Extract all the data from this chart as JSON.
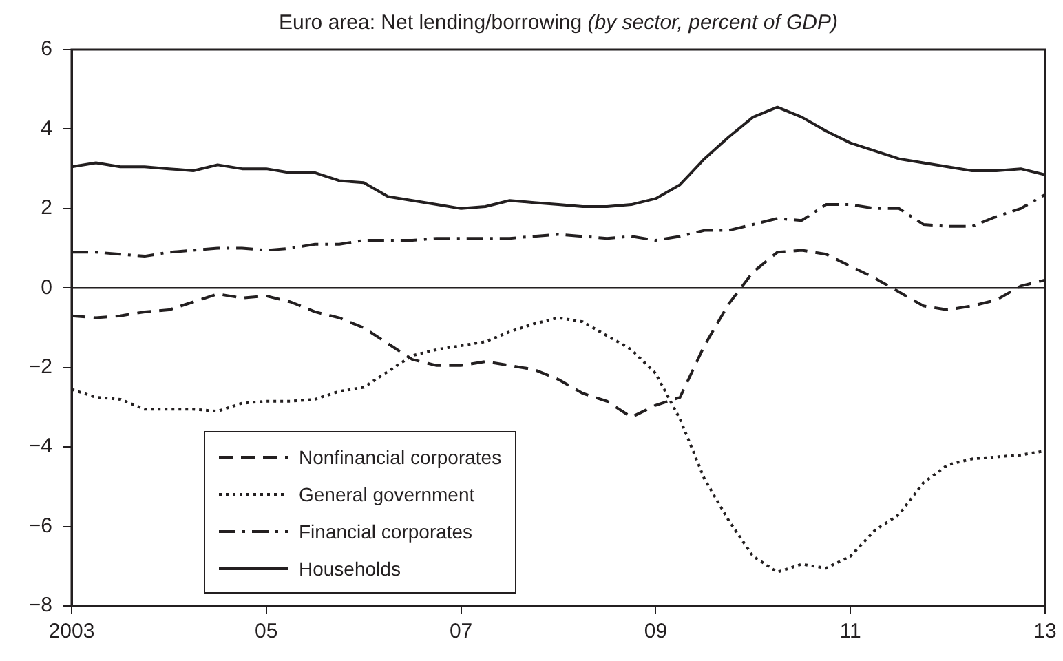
{
  "chart_data": {
    "type": "line",
    "title": "Euro area: Net lending/borrowing",
    "subtitle": "(by sector, percent of GDP)",
    "x": [
      2003,
      2003.25,
      2003.5,
      2003.75,
      2004,
      2004.25,
      2004.5,
      2004.75,
      2005,
      2005.25,
      2005.5,
      2005.75,
      2006,
      2006.25,
      2006.5,
      2006.75,
      2007,
      2007.25,
      2007.5,
      2007.75,
      2008,
      2008.25,
      2008.5,
      2008.75,
      2009,
      2009.25,
      2009.5,
      2009.75,
      2010,
      2010.25,
      2010.5,
      2010.75,
      2011,
      2011.25,
      2011.5,
      2011.75,
      2012,
      2012.25,
      2012.5,
      2012.75,
      2013
    ],
    "series": [
      {
        "name": "Nonfinancial corporates",
        "color": "#231f20",
        "line_style": "dashed",
        "values": [
          -0.7,
          -0.75,
          -0.7,
          -0.6,
          -0.55,
          -0.35,
          -0.15,
          -0.25,
          -0.2,
          -0.35,
          -0.6,
          -0.75,
          -1.0,
          -1.4,
          -1.8,
          -1.95,
          -1.95,
          -1.85,
          -1.95,
          -2.05,
          -2.3,
          -2.65,
          -2.85,
          -3.25,
          -2.95,
          -2.75,
          -1.45,
          -0.4,
          0.4,
          0.9,
          0.95,
          0.85,
          0.55,
          0.25,
          -0.1,
          -0.45,
          -0.55,
          -0.45,
          -0.3,
          0.05,
          0.2
        ]
      },
      {
        "name": "General government",
        "color": "#231f20",
        "line_style": "dotted",
        "values": [
          -2.55,
          -2.75,
          -2.8,
          -3.05,
          -3.05,
          -3.05,
          -3.1,
          -2.9,
          -2.85,
          -2.85,
          -2.8,
          -2.6,
          -2.5,
          -2.1,
          -1.7,
          -1.55,
          -1.45,
          -1.35,
          -1.1,
          -0.9,
          -0.75,
          -0.85,
          -1.2,
          -1.55,
          -2.15,
          -3.3,
          -4.8,
          -5.85,
          -6.75,
          -7.15,
          -6.95,
          -7.05,
          -6.75,
          -6.1,
          -5.7,
          -4.9,
          -4.45,
          -4.3,
          -4.25,
          -4.2,
          -4.1
        ]
      },
      {
        "name": "Financial corporates",
        "color": "#231f20",
        "line_style": "dashdot",
        "values": [
          0.9,
          0.9,
          0.85,
          0.8,
          0.9,
          0.95,
          1.0,
          1.0,
          0.95,
          1.0,
          1.1,
          1.1,
          1.2,
          1.2,
          1.2,
          1.25,
          1.25,
          1.25,
          1.25,
          1.3,
          1.35,
          1.3,
          1.25,
          1.3,
          1.2,
          1.3,
          1.45,
          1.45,
          1.6,
          1.75,
          1.7,
          2.1,
          2.1,
          2.0,
          2.0,
          1.6,
          1.55,
          1.55,
          1.8,
          2.0,
          2.35
        ]
      },
      {
        "name": "Households",
        "color": "#231f20",
        "line_style": "solid",
        "values": [
          3.05,
          3.15,
          3.05,
          3.05,
          3.0,
          2.95,
          3.1,
          3.0,
          3.0,
          2.9,
          2.9,
          2.7,
          2.65,
          2.3,
          2.2,
          2.1,
          2.0,
          2.05,
          2.2,
          2.15,
          2.1,
          2.05,
          2.05,
          2.1,
          2.25,
          2.6,
          3.25,
          3.8,
          4.3,
          4.55,
          4.3,
          3.95,
          3.65,
          3.45,
          3.25,
          3.15,
          3.05,
          2.95,
          2.95,
          3.0,
          2.85
        ]
      }
    ],
    "xlim": [
      2003,
      2013
    ],
    "xticks": [
      {
        "value": 2003,
        "label": "2003"
      },
      {
        "value": 2005,
        "label": "05"
      },
      {
        "value": 2007,
        "label": "07"
      },
      {
        "value": 2009,
        "label": "09"
      },
      {
        "value": 2011,
        "label": "11"
      },
      {
        "value": 2013,
        "label": "13"
      }
    ],
    "ylim": [
      -8,
      6
    ],
    "yticks": [
      {
        "value": -8,
        "label": "−8"
      },
      {
        "value": -6,
        "label": "−6"
      },
      {
        "value": -4,
        "label": "−4"
      },
      {
        "value": -2,
        "label": "−2"
      },
      0,
      2,
      4,
      6
    ],
    "ref_lines": [
      {
        "axis": "y",
        "value": 0,
        "color": "#231f20"
      }
    ],
    "grid": false,
    "legend": "bottom left",
    "marker": "none"
  }
}
